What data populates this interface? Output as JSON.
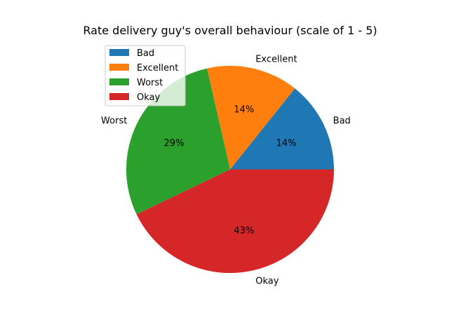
{
  "chart_data": {
    "type": "pie",
    "title": "Rate delivery guy's overall behaviour (scale of 1 - 5)",
    "categories": [
      "Bad",
      "Excellent",
      "Worst",
      "Okay"
    ],
    "values": [
      1,
      1,
      2,
      3
    ],
    "percent_labels": [
      "14%",
      "14%",
      "29%",
      "43%"
    ],
    "colors": [
      "#1f77b4",
      "#ff7f0e",
      "#2ca02c",
      "#d62728"
    ],
    "start_angle_deg": 0,
    "direction": "counterclockwise",
    "legend": {
      "placement": "upper-left",
      "entries": [
        "Bad",
        "Excellent",
        "Worst",
        "Okay"
      ]
    }
  }
}
